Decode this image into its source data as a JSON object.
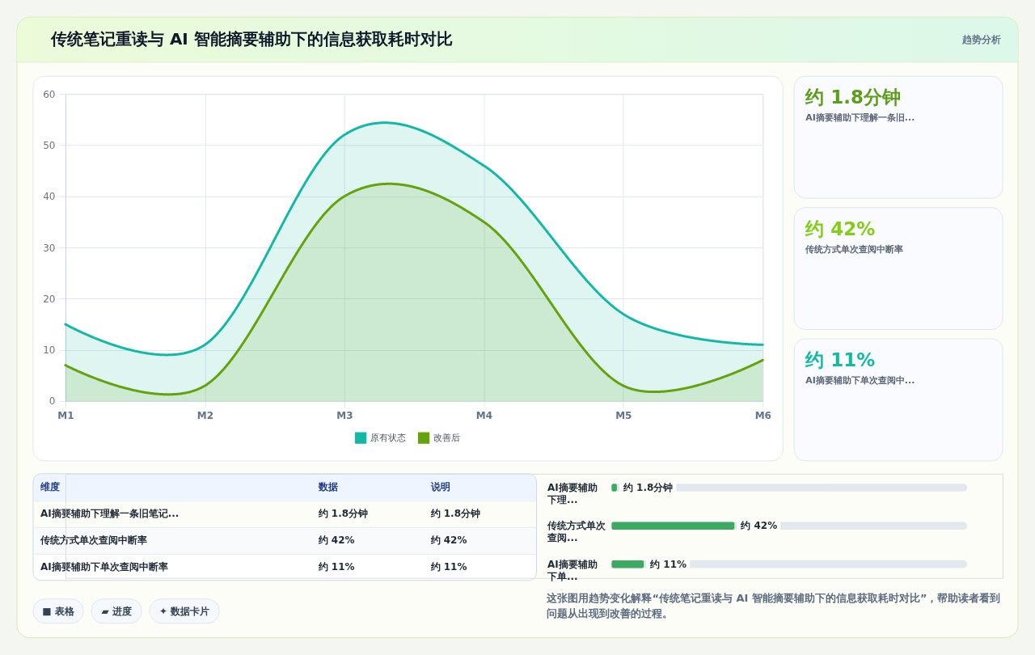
{
  "chart_data": [
    {
      "type": "area",
      "title": "传统笔记重读与 AI 智能摘要辅助下的信息获取耗时对比",
      "categories": [
        "M1",
        "M2",
        "M3",
        "M4",
        "M5",
        "M6"
      ],
      "series": [
        {
          "name": "原有状态",
          "color": "#14b8a6",
          "values": [
            15,
            11,
            52,
            46,
            17,
            11
          ]
        },
        {
          "name": "改善后",
          "color": "#65a30d",
          "values": [
            7,
            3,
            40,
            35,
            3,
            8
          ]
        }
      ],
      "ylim": [
        0,
        60
      ],
      "yticks": [
        0,
        10,
        20,
        30,
        40,
        50,
        60
      ],
      "grid": true,
      "legend": "bottom",
      "annotations": [
        "趋势分析",
        "这张图用趋势变化解释“传统笔记重读与 AI 智能摘要辅助下的信息获取耗时对比”，帮助读者看到问题从出现到改善的过程。"
      ]
    },
    {
      "type": "other",
      "annotations": [
        "约 1.8分钟",
        "AI摘要辅助下理解一条旧...",
        "约 42%",
        "传统方式单次查阅中断率",
        "约 11%",
        "AI摘要辅助下单次查阅中..."
      ],
      "colors": [
        "#5b9e17",
        "#84cc16",
        "#14b8a6"
      ]
    },
    {
      "type": "other",
      "annotations": [
        "维度",
        "数据",
        "说明",
        "AI摘要辅助下理解一条旧笔记...",
        "约 1.8分钟",
        "约 1.8分钟",
        "传统方式单次查阅中断率",
        "约 42%",
        "约 42%",
        "AI摘要辅助下单次查阅中断率",
        "约 11%",
        "约 11%"
      ]
    },
    {
      "type": "bar",
      "orientation": "horizontal",
      "categories": [
        "AI摘要辅助下理...",
        "传统方式单次查阅...",
        "AI摘要辅助下单..."
      ],
      "values": [
        1.8,
        42,
        11
      ],
      "color": "#3caa62",
      "value_labels": [
        "约 1.8分钟",
        "约 42%",
        "约 11%"
      ]
    },
    {
      "type": "other",
      "annotations": [
        "■ 表格",
        "▰ 进度",
        "✦ 数据卡片"
      ]
    }
  ]
}
